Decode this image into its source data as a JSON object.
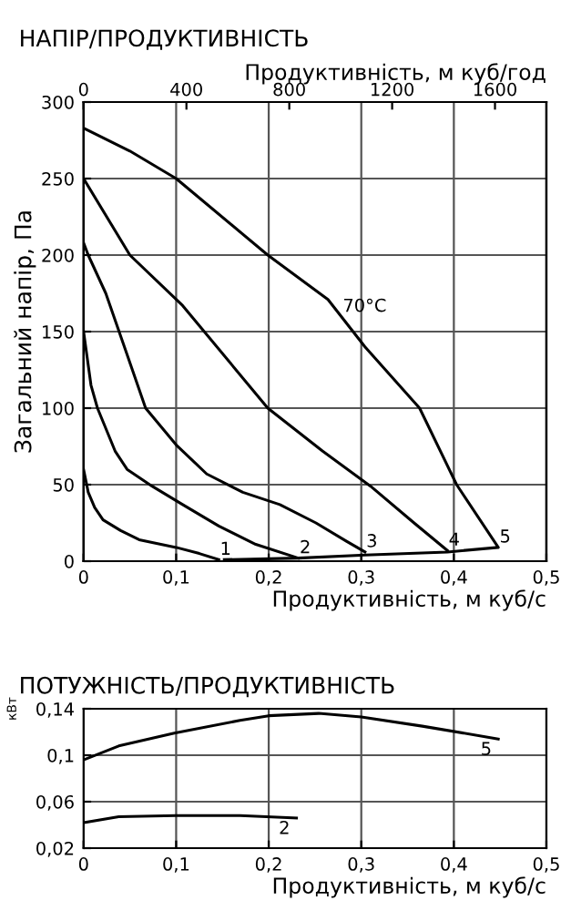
{
  "chart_data": [
    {
      "type": "line",
      "title": "НАПІР/ПРОДУКТИВНІСТЬ",
      "xlabel": "Продуктивність, м куб/с",
      "x2label": "Продуктивність, м куб/год",
      "ylabel": "Загальний напір, Па",
      "xlim": [
        0,
        0.5
      ],
      "xticks": [
        0,
        {
          "value": 0.1,
          "label": "0,1"
        },
        {
          "value": 0.2,
          "label": "0,2"
        },
        {
          "value": 0.3,
          "label": "0,3"
        },
        {
          "value": 0.4,
          "label": "0,4"
        },
        {
          "value": 0.5,
          "label": "0,5"
        }
      ],
      "x2lim": [
        0,
        1800
      ],
      "x2ticks": [
        0,
        400,
        800,
        1200,
        1600
      ],
      "ylim": [
        0,
        300
      ],
      "yticks": [
        0,
        50,
        100,
        150,
        200,
        250,
        300
      ],
      "grid": true,
      "marker": "none",
      "line_style": "solid",
      "annotations": [
        {
          "text": "70°C",
          "x": 0.28,
          "y": 163
        }
      ],
      "series": [
        {
          "name": "1",
          "color": "#000000",
          "x": [
            0,
            0.005,
            0.012,
            0.021,
            0.04,
            0.06,
            0.1,
            0.125,
            0.146
          ],
          "values": [
            60,
            45,
            35,
            27,
            20,
            14,
            9,
            5,
            1
          ]
        },
        {
          "name": "2",
          "color": "#000000",
          "x": [
            0,
            0.008,
            0.015,
            0.034,
            0.047,
            0.074,
            0.107,
            0.146,
            0.186,
            0.232
          ],
          "values": [
            150,
            115,
            100,
            72,
            60,
            49,
            37,
            23,
            11,
            2
          ]
        },
        {
          "name": "3",
          "color": "#000000",
          "x": [
            0,
            0.005,
            0.024,
            0.047,
            0.067,
            0.1,
            0.133,
            0.172,
            0.212,
            0.251,
            0.284,
            0.304
          ],
          "values": [
            208,
            200,
            175,
            135,
            100,
            76,
            57,
            45,
            37,
            25,
            13,
            6
          ]
        },
        {
          "name": "4",
          "color": "#000000",
          "x": [
            0,
            0.05,
            0.107,
            0.199,
            0.258,
            0.31,
            0.357,
            0.393
          ],
          "values": [
            250,
            200,
            167,
            100,
            72,
            49,
            25,
            7
          ]
        },
        {
          "name": "5",
          "color": "#000000",
          "x": [
            0,
            0.05,
            0.1,
            0.199,
            0.264,
            0.304,
            0.363,
            0.403,
            0.448,
            0.393,
            0.304,
            0.232,
            0.152
          ],
          "values": [
            283,
            268,
            250,
            200,
            171,
            140,
            100,
            50,
            9,
            6,
            4,
            2,
            1
          ]
        }
      ]
    },
    {
      "type": "line",
      "title": "ПОТУЖНІСТЬ/ПРОДУКТИВНІСТЬ",
      "xlabel": "Продуктивність, м куб/с",
      "ylabel": "кВт",
      "xlim": [
        0,
        0.5
      ],
      "xticks": [
        0,
        {
          "value": 0.1,
          "label": "0,1"
        },
        {
          "value": 0.2,
          "label": "0,2"
        },
        {
          "value": 0.3,
          "label": "0,3"
        },
        {
          "value": 0.4,
          "label": "0,4"
        },
        {
          "value": 0.5,
          "label": "0,5"
        }
      ],
      "ylim": [
        0.02,
        0.14
      ],
      "yticks": [
        {
          "value": 0.02,
          "label": "0,02"
        },
        {
          "value": 0.06,
          "label": "0,06"
        },
        {
          "value": 0.1,
          "label": "0,1"
        },
        {
          "value": 0.14,
          "label": "0,14"
        }
      ],
      "grid": true,
      "marker": "none",
      "line_style": "solid",
      "series": [
        {
          "name": "5",
          "color": "#000000",
          "x": [
            0,
            0.038,
            0.098,
            0.169,
            0.2,
            0.254,
            0.3,
            0.366,
            0.448
          ],
          "values": [
            0.096,
            0.108,
            0.119,
            0.13,
            0.134,
            0.136,
            0.133,
            0.125,
            0.114
          ]
        },
        {
          "name": "2",
          "color": "#000000",
          "x": [
            0,
            0.038,
            0.1,
            0.169,
            0.23
          ],
          "values": [
            0.042,
            0.047,
            0.048,
            0.048,
            0.046
          ]
        }
      ]
    }
  ]
}
